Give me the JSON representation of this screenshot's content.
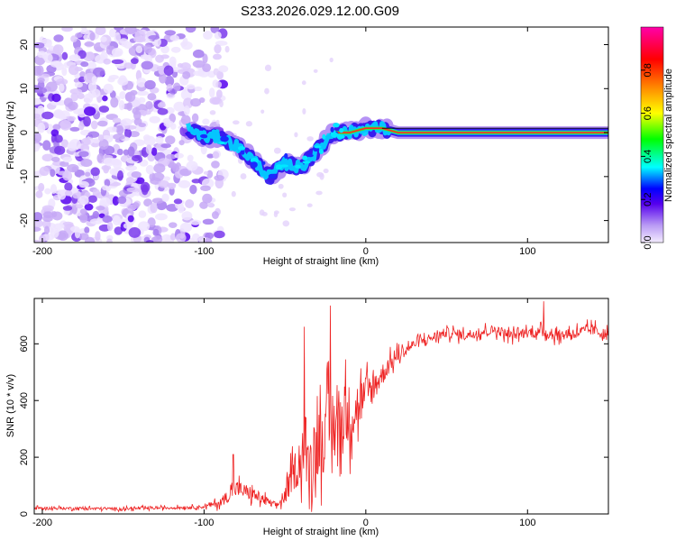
{
  "figure": {
    "title": "S233.2026.029.12.00.G09"
  },
  "colors": {
    "trace": "#ee2222",
    "frame": "#000000",
    "colormap": [
      "#f4ecff",
      "#b99af4",
      "#5500ee",
      "#0000ff",
      "#00ffff",
      "#00ff00",
      "#ffff00",
      "#ff8800",
      "#ff0000",
      "#ff00aa"
    ]
  },
  "chart_data": [
    {
      "type": "heatmap",
      "title": "",
      "xlabel": "Height of straight line (km)",
      "ylabel": "Frequency (Hz)",
      "xlim": [
        -205,
        150
      ],
      "ylim": [
        -25,
        24
      ],
      "xticks": [
        -200,
        -100,
        0,
        100
      ],
      "yticks": [
        -20,
        -10,
        0,
        10,
        20
      ],
      "colorbar": {
        "label": "Normalized spectral amplitude",
        "range": [
          0,
          1
        ],
        "ticks": [
          0.0,
          0.2,
          0.4,
          0.6,
          0.8
        ]
      },
      "track": {
        "description": "dominant frequency ridge",
        "x": [
          -110,
          -100,
          -90,
          -80,
          -70,
          -60,
          -50,
          -40,
          -30,
          -20,
          -10,
          0,
          10,
          20,
          40,
          60,
          80,
          100,
          120,
          150
        ],
        "y": [
          1,
          -1,
          -1,
          -3,
          -6,
          -10,
          -7,
          -8,
          -4,
          0,
          0,
          1,
          1,
          0,
          0,
          0,
          0,
          0,
          0,
          0
        ]
      },
      "noise_region_x": [
        -205,
        -100
      ]
    },
    {
      "type": "line",
      "title": "",
      "xlabel": "Height of straight line (km)",
      "ylabel": "SNR (10 * v/v)",
      "xlim": [
        -205,
        150
      ],
      "ylim": [
        0,
        760
      ],
      "xticks": [
        -200,
        -100,
        0,
        100
      ],
      "yticks": [
        0,
        200,
        400,
        600
      ],
      "series": [
        {
          "name": "SNR",
          "x": [
            -205,
            -180,
            -150,
            -120,
            -100,
            -90,
            -80,
            -70,
            -60,
            -55,
            -50,
            -45,
            -40,
            -35,
            -30,
            -25,
            -20,
            -15,
            -10,
            -5,
            0,
            5,
            10,
            15,
            20,
            25,
            30,
            40,
            50,
            60,
            70,
            80,
            90,
            100,
            110,
            120,
            130,
            140,
            150
          ],
          "mean": [
            20,
            20,
            18,
            22,
            25,
            40,
            90,
            70,
            40,
            30,
            60,
            140,
            200,
            180,
            250,
            280,
            320,
            330,
            350,
            380,
            420,
            450,
            490,
            530,
            560,
            580,
            600,
            620,
            640,
            630,
            640,
            650,
            630,
            640,
            640,
            630,
            640,
            650,
            630
          ],
          "spread": [
            10,
            10,
            10,
            10,
            12,
            30,
            60,
            50,
            30,
            20,
            50,
            120,
            170,
            180,
            240,
            260,
            280,
            250,
            220,
            180,
            140,
            110,
            80,
            60,
            50,
            40,
            35,
            35,
            35,
            35,
            35,
            35,
            35,
            35,
            40,
            40,
            40,
            40,
            40
          ],
          "peaks": [
            {
              "x": -22,
              "y": 735
            },
            {
              "x": -38,
              "y": 660
            },
            {
              "x": 110,
              "y": 750
            },
            {
              "x": -82,
              "y": 210
            }
          ]
        }
      ]
    }
  ]
}
